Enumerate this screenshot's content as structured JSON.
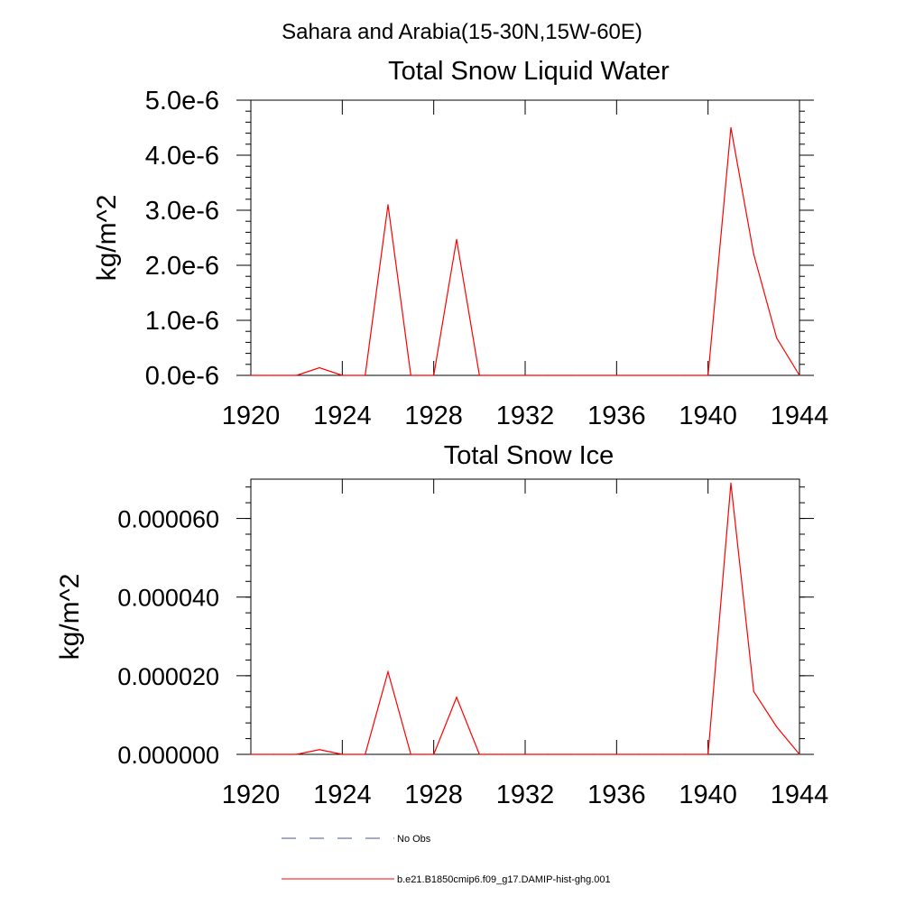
{
  "figure_title": "Sahara and Arabia(15-30N,15W-60E)",
  "chart_data": [
    {
      "type": "line",
      "title": "Total Snow Liquid Water",
      "xlabel": "",
      "ylabel": "kg/m^2",
      "xlim": [
        1920,
        1944
      ],
      "ylim": [
        0,
        5e-06
      ],
      "x_ticks": [
        1920,
        1924,
        1928,
        1932,
        1936,
        1940,
        1944
      ],
      "x_tick_labels": [
        "1920",
        "1924",
        "1928",
        "1932",
        "1936",
        "1940",
        "1944"
      ],
      "y_ticks": [
        0,
        1e-06,
        2e-06,
        3e-06,
        4e-06,
        5e-06
      ],
      "y_tick_labels": [
        "0.0e-6",
        "1.0e-6",
        "2.0e-6",
        "3.0e-6",
        "4.0e-6",
        "5.0e-6"
      ],
      "grid": false,
      "series": [
        {
          "name": "b.e21.B1850cmip6.f09_g17.DAMIP-hist-ghg.001",
          "color": "#ff0000",
          "x": [
            1920,
            1921,
            1922,
            1923,
            1924,
            1925,
            1926,
            1927,
            1928,
            1929,
            1930,
            1931,
            1932,
            1933,
            1934,
            1935,
            1936,
            1937,
            1938,
            1939,
            1940,
            1941,
            1942,
            1943,
            1944
          ],
          "y": [
            0,
            0,
            0,
            1.4e-07,
            0,
            0,
            3.1e-06,
            0,
            0,
            2.47e-06,
            0,
            0,
            0,
            0,
            0,
            0,
            0,
            0,
            0,
            0,
            0,
            4.5e-06,
            2.2e-06,
            6.8e-07,
            0
          ]
        }
      ]
    },
    {
      "type": "line",
      "title": "Total Snow Ice",
      "xlabel": "",
      "ylabel": "kg/m^2",
      "xlim": [
        1920,
        1944
      ],
      "ylim": [
        0,
        7e-05
      ],
      "x_ticks": [
        1920,
        1924,
        1928,
        1932,
        1936,
        1940,
        1944
      ],
      "x_tick_labels": [
        "1920",
        "1924",
        "1928",
        "1932",
        "1936",
        "1940",
        "1944"
      ],
      "y_ticks": [
        0,
        2e-05,
        4e-05,
        6e-05
      ],
      "y_tick_labels": [
        "0.000000",
        "0.000020",
        "0.000040",
        "0.000060"
      ],
      "grid": false,
      "series": [
        {
          "name": "b.e21.B1850cmip6.f09_g17.DAMIP-hist-ghg.001",
          "color": "#ff0000",
          "x": [
            1920,
            1921,
            1922,
            1923,
            1924,
            1925,
            1926,
            1927,
            1928,
            1929,
            1930,
            1931,
            1932,
            1933,
            1934,
            1935,
            1936,
            1937,
            1938,
            1939,
            1940,
            1941,
            1942,
            1943,
            1944
          ],
          "y": [
            0,
            0,
            0,
            1.2e-06,
            0,
            0,
            2.1e-05,
            0,
            0,
            1.45e-05,
            0,
            0,
            0,
            0,
            0,
            0,
            0,
            0,
            0,
            0,
            0,
            6.9e-05,
            1.6e-05,
            7e-06,
            0
          ]
        }
      ]
    }
  ],
  "legend": [
    {
      "label": "No Obs",
      "style": "dashed",
      "color": "#4a5a8a"
    },
    {
      "label": "b.e21.B1850cmip6.f09_g17.DAMIP-hist-ghg.001",
      "style": "solid",
      "color": "#ff0000"
    }
  ]
}
